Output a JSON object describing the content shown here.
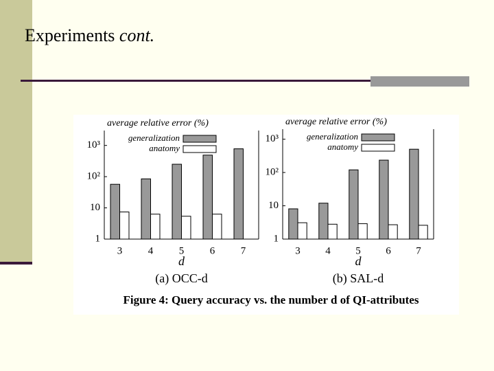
{
  "slide": {
    "title": "Experiments",
    "title_suffix": "cont."
  },
  "figure_caption": "Figure 4: Query accuracy vs. the number d of QI-attributes",
  "chart_data": [
    {
      "type": "bar",
      "ylabel": "average relative error (%)",
      "xlabel": "d",
      "caption": "(a) OCC-d",
      "categories": [
        "3",
        "4",
        "5",
        "6",
        "7"
      ],
      "series": [
        {
          "name": "generalization",
          "color": "#999999",
          "values": [
            57,
            85,
            250,
            490,
            780
          ]
        },
        {
          "name": "anatomy",
          "color": "#ffffff",
          "values": [
            7.4,
            6.3,
            5.4,
            6.3,
            null
          ]
        }
      ],
      "log_scale": true,
      "ylim": [
        1,
        3000
      ],
      "yticks": [
        1,
        10,
        {
          "value": 100,
          "label": "10²"
        },
        {
          "value": 1000,
          "label": "10³"
        }
      ]
    },
    {
      "type": "bar",
      "ylabel": "average relative error (%)",
      "xlabel": "d",
      "caption": "(b) SAL-d",
      "categories": [
        "3",
        "4",
        "5",
        "6",
        "7"
      ],
      "series": [
        {
          "name": "generalization",
          "color": "#999999",
          "values": [
            8.1,
            12,
            120,
            235,
            500
          ]
        },
        {
          "name": "anatomy",
          "color": "#ffffff",
          "values": [
            3.1,
            2.8,
            2.9,
            2.7,
            2.6
          ]
        }
      ],
      "log_scale": true,
      "ylim": [
        1,
        2000
      ],
      "yticks": [
        1,
        10,
        {
          "value": 100,
          "label": "10²"
        },
        {
          "value": 1000,
          "label": "10³"
        }
      ]
    }
  ]
}
